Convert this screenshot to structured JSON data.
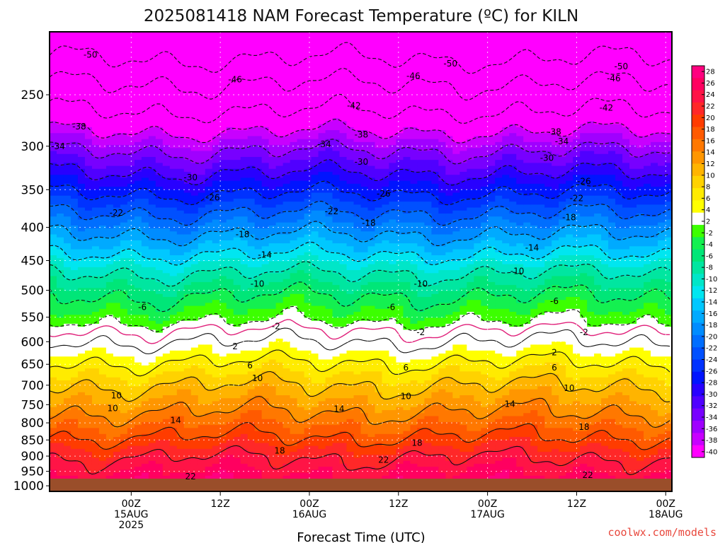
{
  "chart_data": {
    "type": "heatmap",
    "title": "2025081418 NAM Forecast Temperature (ºC) for KILN",
    "xlabel": "Forecast Time (UTC)",
    "ylabel": "",
    "credit": "coolwx.com/models",
    "x_range_hours": [
      -5,
      65
    ],
    "y_range_hPa": [
      200,
      1020
    ],
    "y_scale": "log-pressure (inverted)",
    "grid": true,
    "ground_level_hPa": 975,
    "ground_color": "#9a4e2a",
    "yticks": [
      {
        "p": 250,
        "label": "250"
      },
      {
        "p": 300,
        "label": "300"
      },
      {
        "p": 350,
        "label": "350"
      },
      {
        "p": 400,
        "label": "400"
      },
      {
        "p": 450,
        "label": "450"
      },
      {
        "p": 500,
        "label": "500"
      },
      {
        "p": 550,
        "label": "550"
      },
      {
        "p": 600,
        "label": "600"
      },
      {
        "p": 650,
        "label": "650"
      },
      {
        "p": 700,
        "label": "700"
      },
      {
        "p": 750,
        "label": "750"
      },
      {
        "p": 800,
        "label": "800"
      },
      {
        "p": 850,
        "label": "850"
      },
      {
        "p": 900,
        "label": "900"
      },
      {
        "p": 950,
        "label": "950"
      },
      {
        "p": 1000,
        "label": "1000"
      }
    ],
    "xticks": [
      {
        "h": 6,
        "lines": [
          "00Z",
          "15AUG",
          "2025"
        ]
      },
      {
        "h": 18,
        "lines": [
          "12Z"
        ]
      },
      {
        "h": 30,
        "lines": [
          "00Z",
          "16AUG"
        ]
      },
      {
        "h": 42,
        "lines": [
          "12Z"
        ]
      },
      {
        "h": 54,
        "lines": [
          "00Z",
          "17AUG"
        ]
      },
      {
        "h": 66,
        "lines": [
          "12Z"
        ]
      },
      {
        "h": 78,
        "lines": [
          "00Z",
          "18AUG"
        ]
      }
    ],
    "colorbar": {
      "labels": [
        "28",
        "26",
        "24",
        "22",
        "20",
        "18",
        "16",
        "14",
        "12",
        "10",
        "8",
        "6",
        "4",
        "2",
        "-2",
        "-4",
        "-6",
        "-8",
        "-10",
        "-12",
        "-14",
        "-16",
        "-18",
        "-20",
        "-22",
        "-24",
        "-26",
        "-28",
        "-30",
        "-32",
        "-34",
        "-36",
        "-38",
        "-40"
      ],
      "colors": [
        "#ff007f",
        "#ff0060",
        "#ff1446",
        "#ff2828",
        "#ff3c00",
        "#ff5a00",
        "#ff7800",
        "#ff9600",
        "#ffb400",
        "#ffd200",
        "#ffeb00",
        "#ffff00",
        "#ffffff",
        "#3cff00",
        "#14f050",
        "#00e678",
        "#00e6a0",
        "#00e6c8",
        "#00e6f0",
        "#00c8ff",
        "#00aaff",
        "#008cff",
        "#006eff",
        "#0050ff",
        "#0032ff",
        "#0014ff",
        "#2800ff",
        "#5000ff",
        "#7800ff",
        "#a000ff",
        "#c800ff",
        "#ff00ff"
      ]
    },
    "profile_base_temperature_C": [
      {
        "p": 200,
        "t": -54
      },
      {
        "p": 220,
        "t": -50
      },
      {
        "p": 240,
        "t": -46
      },
      {
        "p": 265,
        "t": -42
      },
      {
        "p": 285,
        "t": -38
      },
      {
        "p": 305,
        "t": -34
      },
      {
        "p": 330,
        "t": -30
      },
      {
        "p": 355,
        "t": -26
      },
      {
        "p": 380,
        "t": -22
      },
      {
        "p": 410,
        "t": -18
      },
      {
        "p": 440,
        "t": -14
      },
      {
        "p": 470,
        "t": -10
      },
      {
        "p": 510,
        "t": -6
      },
      {
        "p": 560,
        "t": -2
      },
      {
        "p": 575,
        "t": 0
      },
      {
        "p": 600,
        "t": 2
      },
      {
        "p": 645,
        "t": 6
      },
      {
        "p": 700,
        "t": 10
      },
      {
        "p": 770,
        "t": 14
      },
      {
        "p": 840,
        "t": 18
      },
      {
        "p": 905,
        "t": 22
      },
      {
        "p": 950,
        "t": 24
      },
      {
        "p": 1000,
        "t": 26
      }
    ],
    "contour_levels_C": [
      -50,
      -46,
      -42,
      -38,
      -34,
      -30,
      -26,
      -22,
      -18,
      -14,
      -10,
      -6,
      -2,
      2,
      6,
      10,
      14,
      18,
      22
    ],
    "contour_labels": [
      {
        "h": 0.5,
        "p": 217,
        "t": "-50"
      },
      {
        "h": 49,
        "p": 224,
        "t": "-50"
      },
      {
        "h": 72,
        "p": 226,
        "t": "-50"
      },
      {
        "h": 20,
        "p": 237,
        "t": "-46"
      },
      {
        "h": 44,
        "p": 234,
        "t": "-46"
      },
      {
        "h": 71,
        "p": 236,
        "t": "-46"
      },
      {
        "h": 36,
        "p": 260,
        "t": "-42"
      },
      {
        "h": 70,
        "p": 262,
        "t": "-42"
      },
      {
        "h": -1,
        "p": 280,
        "t": "-38"
      },
      {
        "h": 37,
        "p": 288,
        "t": "-38"
      },
      {
        "h": 63,
        "p": 285,
        "t": "-38"
      },
      {
        "h": -5,
        "p": 300,
        "t": "-34"
      },
      {
        "h": 32,
        "p": 298,
        "t": "-34"
      },
      {
        "h": 64,
        "p": 295,
        "t": "-34"
      },
      {
        "h": 37,
        "p": 317,
        "t": "-30"
      },
      {
        "h": 14,
        "p": 335,
        "t": "-30"
      },
      {
        "h": 62,
        "p": 313,
        "t": "-30"
      },
      {
        "h": 40,
        "p": 355,
        "t": "-26"
      },
      {
        "h": 17,
        "p": 360,
        "t": "-26"
      },
      {
        "h": 67,
        "p": 340,
        "t": "-26"
      },
      {
        "h": 4,
        "p": 380,
        "t": "-22"
      },
      {
        "h": 33,
        "p": 378,
        "t": "-22"
      },
      {
        "h": 66,
        "p": 361,
        "t": "-22"
      },
      {
        "h": 38,
        "p": 394,
        "t": "-18"
      },
      {
        "h": 21,
        "p": 410,
        "t": "-18"
      },
      {
        "h": 65,
        "p": 386,
        "t": "-18"
      },
      {
        "h": 60,
        "p": 430,
        "t": "-14"
      },
      {
        "h": 24,
        "p": 441,
        "t": "-14"
      },
      {
        "h": 58,
        "p": 467,
        "t": "-10"
      },
      {
        "h": 23,
        "p": 489,
        "t": "-10"
      },
      {
        "h": 45,
        "p": 489,
        "t": "-10"
      },
      {
        "h": 7.5,
        "p": 531,
        "t": "-6"
      },
      {
        "h": 41,
        "p": 531,
        "t": "-6"
      },
      {
        "h": 63,
        "p": 520,
        "t": "-6"
      },
      {
        "h": 25.5,
        "p": 568,
        "t": "-2"
      },
      {
        "h": 45,
        "p": 580,
        "t": "-2"
      },
      {
        "h": 67,
        "p": 580,
        "t": "-2"
      },
      {
        "h": 20,
        "p": 610,
        "t": "2"
      },
      {
        "h": 63,
        "p": 623,
        "t": "2"
      },
      {
        "h": 22,
        "p": 653,
        "t": "6"
      },
      {
        "h": 43,
        "p": 658,
        "t": "6"
      },
      {
        "h": 63,
        "p": 658,
        "t": "6"
      },
      {
        "h": 23,
        "p": 683,
        "t": "10"
      },
      {
        "h": 4,
        "p": 726,
        "t": "10"
      },
      {
        "h": 3.5,
        "p": 760,
        "t": "10"
      },
      {
        "h": 43,
        "p": 728,
        "t": "10"
      },
      {
        "h": 65,
        "p": 707,
        "t": "10"
      },
      {
        "h": 34,
        "p": 762,
        "t": "14"
      },
      {
        "h": 57,
        "p": 748,
        "t": "14"
      },
      {
        "h": 12,
        "p": 793,
        "t": "14"
      },
      {
        "h": 26,
        "p": 883,
        "t": "18"
      },
      {
        "h": 44.5,
        "p": 859,
        "t": "18"
      },
      {
        "h": 67,
        "p": 812,
        "t": "18"
      },
      {
        "h": 40,
        "p": 912,
        "t": "22"
      },
      {
        "h": 14,
        "p": 968,
        "t": "22"
      },
      {
        "h": 67.5,
        "p": 963,
        "t": "22"
      }
    ]
  }
}
